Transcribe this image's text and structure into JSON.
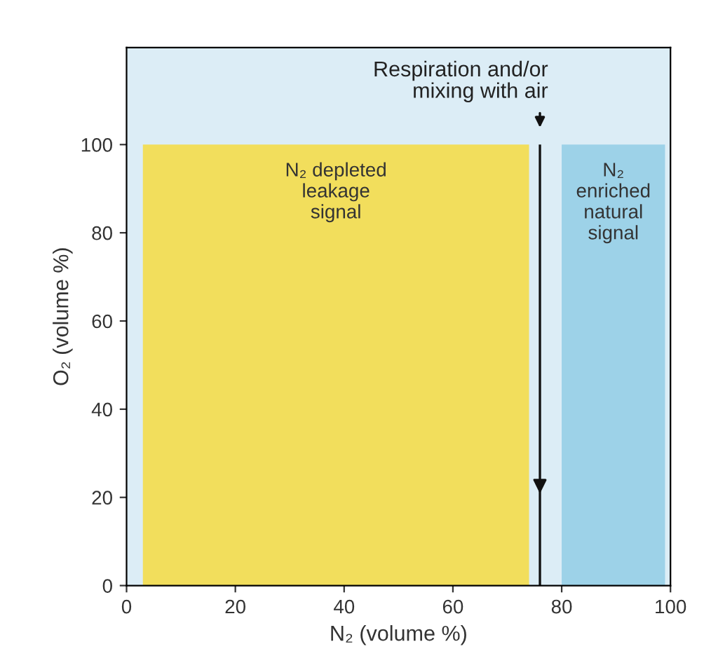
{
  "chart_data": {
    "type": "area",
    "xlabel": "N₂ (volume %)",
    "ylabel": "O₂ (volume %)",
    "xlim": [
      0,
      100
    ],
    "ylim": [
      0,
      122
    ],
    "xticks": [
      0,
      20,
      40,
      60,
      80,
      100
    ],
    "yticks": [
      0,
      20,
      40,
      60,
      80,
      100
    ],
    "series": [
      {
        "name": "N₂ depleted\nleakage\nsignal",
        "x": [
          3,
          74
        ],
        "values": [
          100,
          100
        ],
        "color": "#f2de5c"
      },
      {
        "name": "N₂\nenriched\nnatural\nsignal",
        "x": [
          80,
          99
        ],
        "values": [
          100,
          100
        ],
        "color": "#9dd2e8"
      }
    ],
    "ref_lines": [
      {
        "axis": "x",
        "value": 76,
        "label": "Respiration and/or\nmixing with air",
        "color": "#111111"
      }
    ]
  }
}
